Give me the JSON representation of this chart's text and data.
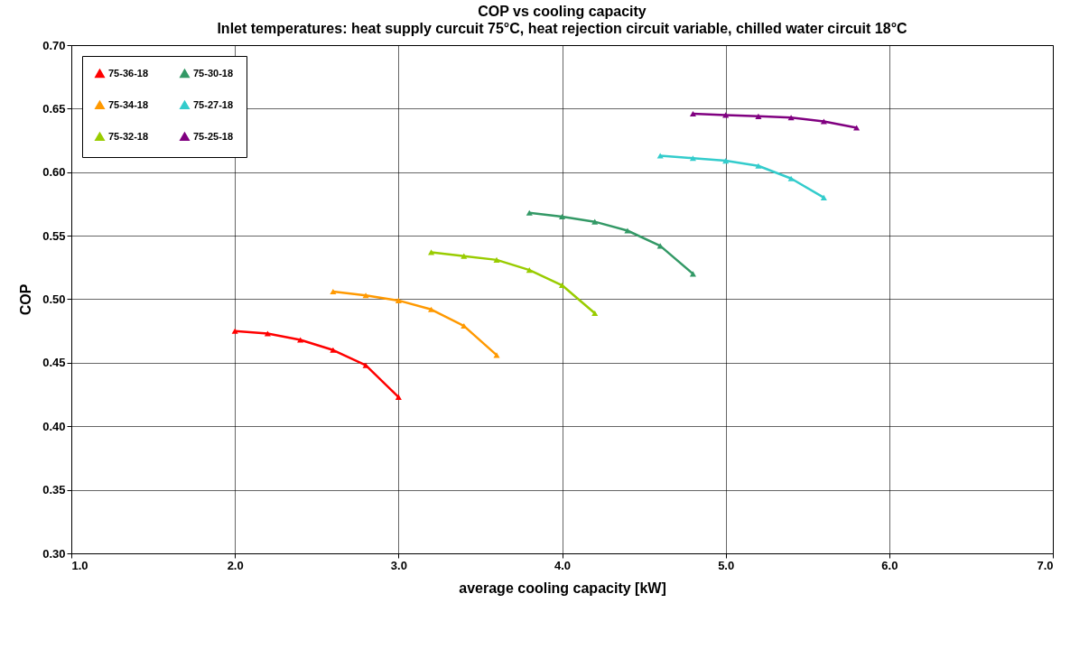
{
  "chart_data": {
    "type": "line",
    "title": "COP vs cooling capacity",
    "subtitle": "Inlet temperatures: heat supply curcuit 75°C, heat rejection circuit variable,\nchilled water circuit 18°C",
    "xlabel": "average cooling capacity [kW]",
    "ylabel": "COP",
    "xlim": [
      1,
      7
    ],
    "xticks": [
      {
        "value": 1,
        "label": "1.0"
      },
      {
        "value": 2,
        "label": "2.0"
      },
      {
        "value": 3,
        "label": "3.0"
      },
      {
        "value": 4,
        "label": "4.0"
      },
      {
        "value": 5,
        "label": "5.0"
      },
      {
        "value": 6,
        "label": "6.0"
      },
      {
        "value": 7,
        "label": "7.0"
      }
    ],
    "ylim": [
      0.3,
      0.7
    ],
    "yticks": [
      {
        "value": 0.3,
        "label": "0.30"
      },
      {
        "value": 0.35,
        "label": "0.35"
      },
      {
        "value": 0.4,
        "label": "0.40"
      },
      {
        "value": 0.45,
        "label": "0.45"
      },
      {
        "value": 0.5,
        "label": "0.50"
      },
      {
        "value": 0.55,
        "label": "0.55"
      },
      {
        "value": 0.6,
        "label": "0.60"
      },
      {
        "value": 0.65,
        "label": "0.65"
      },
      {
        "value": 0.7,
        "label": "0.70"
      }
    ],
    "grid": true,
    "legend": "top left",
    "marker": "triangle",
    "line_style": "solid",
    "series": [
      {
        "name": "75-36-18",
        "color": "#ff0000",
        "x": [
          2.0,
          2.2,
          2.4,
          2.6,
          2.8,
          3.0
        ],
        "values": [
          0.475,
          0.473,
          0.468,
          0.46,
          0.448,
          0.423
        ]
      },
      {
        "name": "75-34-18",
        "color": "#ff9900",
        "x": [
          2.6,
          2.8,
          3.0,
          3.2,
          3.4,
          3.6
        ],
        "values": [
          0.506,
          0.503,
          0.499,
          0.492,
          0.479,
          0.456
        ]
      },
      {
        "name": "75-32-18",
        "color": "#99cc00",
        "x": [
          3.2,
          3.4,
          3.6,
          3.8,
          4.0,
          4.2
        ],
        "values": [
          0.537,
          0.534,
          0.531,
          0.523,
          0.511,
          0.489
        ]
      },
      {
        "name": "75-30-18",
        "color": "#339966",
        "x": [
          3.8,
          4.0,
          4.2,
          4.4,
          4.6,
          4.8
        ],
        "values": [
          0.568,
          0.565,
          0.561,
          0.554,
          0.542,
          0.52
        ]
      },
      {
        "name": "75-27-18",
        "color": "#33cccc",
        "x": [
          4.6,
          4.8,
          5.0,
          5.2,
          5.4,
          5.6
        ],
        "values": [
          0.613,
          0.611,
          0.609,
          0.605,
          0.595,
          0.58
        ]
      },
      {
        "name": "75-25-18",
        "color": "#800080",
        "x": [
          4.8,
          5.0,
          5.2,
          5.4,
          5.6,
          5.8
        ],
        "values": [
          0.646,
          0.645,
          0.644,
          0.643,
          0.64,
          0.635
        ]
      }
    ]
  }
}
